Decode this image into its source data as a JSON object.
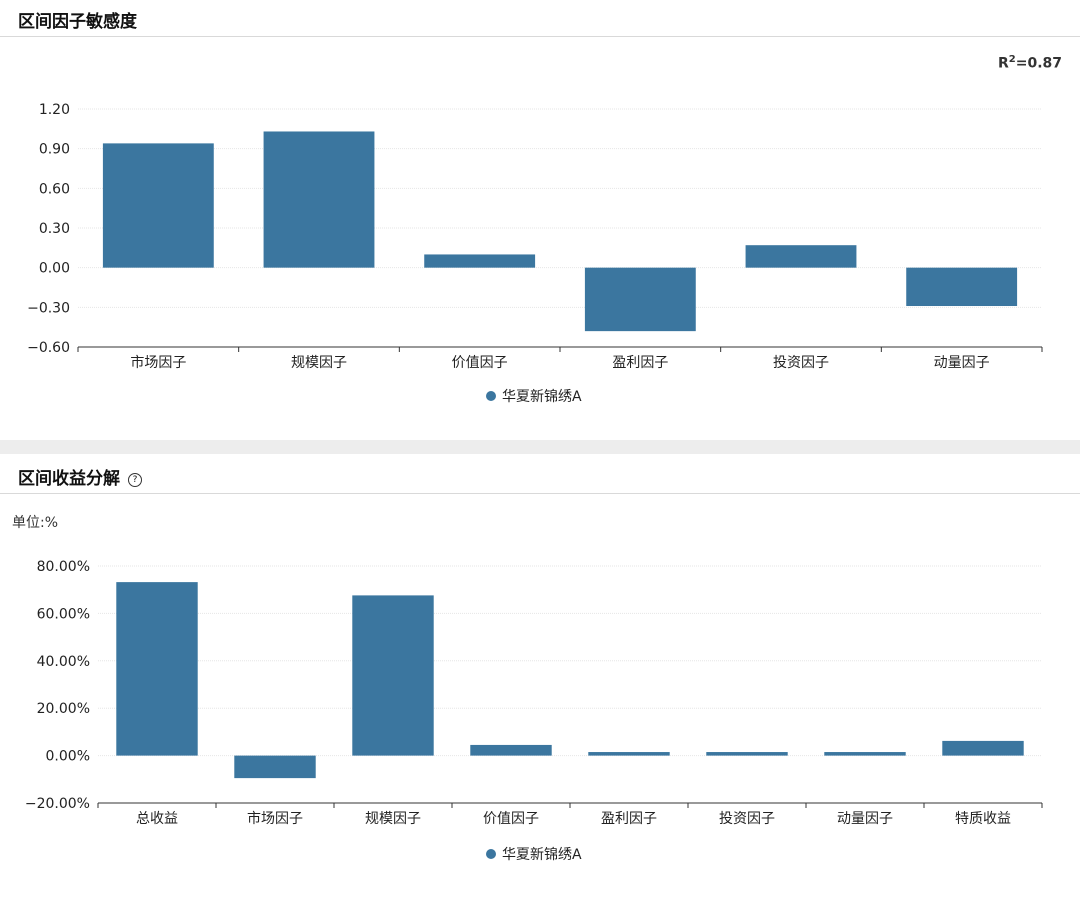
{
  "panel1": {
    "title": "区间因子敏感度",
    "r2_label": "R",
    "r2_sup": "2",
    "r2_value": "=0.87"
  },
  "panel2": {
    "title": "区间收益分解",
    "unit": "单位:%"
  },
  "legend_label": "华夏新锦绣A",
  "colors": {
    "bar": "#3b769f",
    "grid": "#e6e6e6",
    "axis": "#333333"
  },
  "chart_data": [
    {
      "type": "bar",
      "categories": [
        "市场因子",
        "规模因子",
        "价值因子",
        "盈利因子",
        "投资因子",
        "动量因子"
      ],
      "series": [
        {
          "name": "华夏新锦绣A",
          "values": [
            0.94,
            1.03,
            0.1,
            -0.48,
            0.17,
            -0.29
          ]
        }
      ],
      "ylim": [
        -0.6,
        1.2
      ],
      "yticks": [
        "1.20",
        "0.90",
        "0.60",
        "0.30",
        "0.00",
        "−0.30",
        "−0.60"
      ],
      "ytick_values": [
        1.2,
        0.9,
        0.6,
        0.3,
        0.0,
        -0.3,
        -0.6
      ],
      "grid": true,
      "legend": "bottom"
    },
    {
      "type": "bar",
      "categories": [
        "总收益",
        "市场因子",
        "规模因子",
        "价值因子",
        "盈利因子",
        "投资因子",
        "动量因子",
        "特质收益"
      ],
      "series": [
        {
          "name": "华夏新锦绣A",
          "values": [
            73.2,
            -9.5,
            67.6,
            4.5,
            1.5,
            1.5,
            1.5,
            6.2
          ]
        }
      ],
      "ylim": [
        -20,
        80
      ],
      "yticks": [
        "80.00%",
        "60.00%",
        "40.00%",
        "20.00%",
        "0.00%",
        "−20.00%"
      ],
      "ytick_values": [
        80,
        60,
        40,
        20,
        0,
        -20
      ],
      "grid": true,
      "legend": "bottom"
    }
  ]
}
